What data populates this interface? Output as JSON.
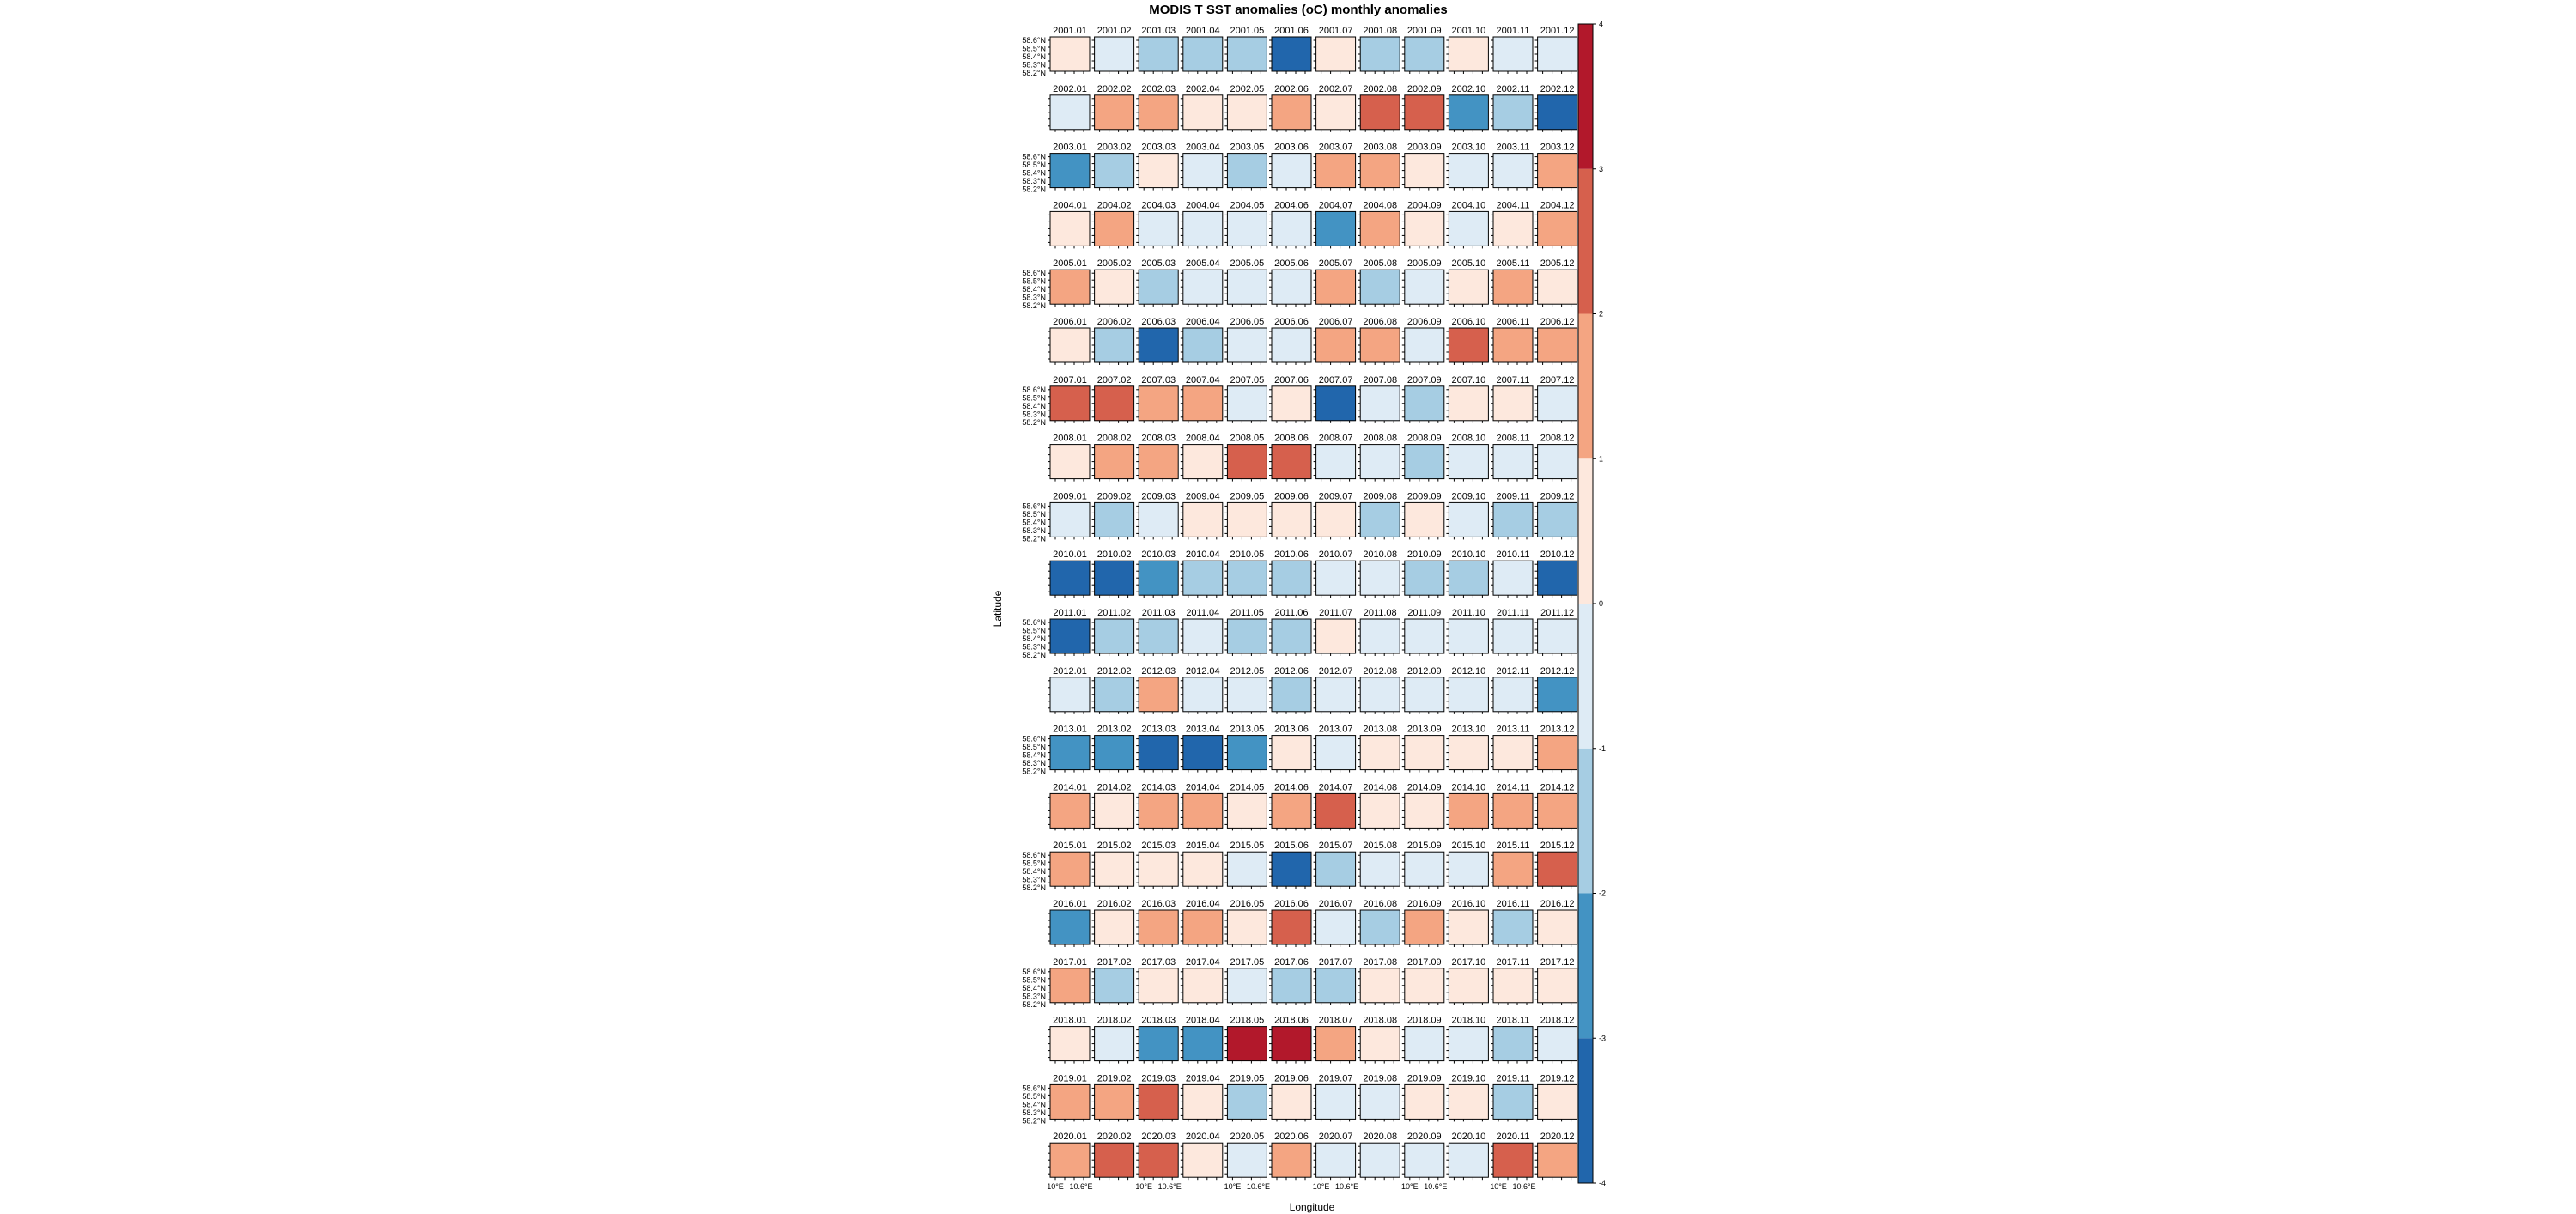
{
  "chart_data": {
    "type": "heatmap",
    "title": "MODIS T SST anomalies (oC) monthly anomalies",
    "xlabel": "Longitude",
    "ylabel": "Latitude",
    "x_tick_labels": [
      "10°E",
      "10.6°E"
    ],
    "y_tick_labels": [
      "58.6°N",
      "58.5°N",
      "58.4°N",
      "58.3°N",
      "58.2°N"
    ],
    "colorbar": {
      "ticks": [
        4,
        3,
        2,
        1,
        0,
        -1,
        -2,
        -3,
        -4
      ],
      "ylim": [
        -4,
        4
      ],
      "bins": [
        {
          "from": -4,
          "to": -3,
          "color": "#2166ac"
        },
        {
          "from": -3,
          "to": -2,
          "color": "#4393c3"
        },
        {
          "from": -2,
          "to": -1,
          "color": "#a6cde3"
        },
        {
          "from": -1,
          "to": 0,
          "color": "#deebf5"
        },
        {
          "from": 0,
          "to": 1,
          "color": "#fde8dd"
        },
        {
          "from": 1,
          "to": 2,
          "color": "#f4a582"
        },
        {
          "from": 2,
          "to": 3,
          "color": "#d6604d"
        },
        {
          "from": 3,
          "to": 4,
          "color": "#b2182b"
        }
      ]
    },
    "years": [
      "2001",
      "2002",
      "2003",
      "2004",
      "2005",
      "2006",
      "2007",
      "2008",
      "2009",
      "2010",
      "2011",
      "2012",
      "2013",
      "2014",
      "2015",
      "2016",
      "2017",
      "2018",
      "2019",
      "2020"
    ],
    "months": [
      "01",
      "02",
      "03",
      "04",
      "05",
      "06",
      "07",
      "08",
      "09",
      "10",
      "11",
      "12"
    ],
    "panel_mean_anomaly": [
      [
        0.5,
        -0.5,
        -1.5,
        -1.5,
        -1.0,
        -3.5,
        0.5,
        -1.0,
        -1.5,
        0.5,
        -0.5,
        -0.5
      ],
      [
        -0.5,
        1.5,
        1.5,
        0.5,
        0.5,
        1.5,
        0.5,
        2.5,
        2.5,
        -2.0,
        -1.5,
        -3.5
      ],
      [
        -2.5,
        -1.5,
        0.5,
        -0.5,
        -1.5,
        -0.5,
        1.5,
        1.5,
        0.5,
        -0.5,
        -0.5,
        1.5
      ],
      [
        0.5,
        1.5,
        -0.5,
        -0.5,
        -0.5,
        -0.5,
        -2.5,
        1.5,
        0.5,
        -0.5,
        0.5,
        1.5
      ],
      [
        1.5,
        0.5,
        -1.5,
        -0.5,
        -0.5,
        -0.5,
        1.5,
        -1.5,
        -0.5,
        0.5,
        1.5,
        0.5
      ],
      [
        0.5,
        -1.5,
        -3.5,
        -1.5,
        -0.5,
        -0.5,
        1.5,
        1.5,
        -0.5,
        2.5,
        1.5,
        1.5
      ],
      [
        2.5,
        2.5,
        1.5,
        1.5,
        -0.5,
        0.5,
        -3.5,
        -0.5,
        -1.5,
        0.5,
        0.5,
        -0.5
      ],
      [
        0.5,
        1.5,
        1.5,
        0.5,
        2.5,
        2.5,
        -0.5,
        -0.5,
        -1.5,
        -0.5,
        -0.5,
        -0.5
      ],
      [
        -0.5,
        -1.5,
        -0.5,
        0.5,
        0.5,
        0.5,
        0.5,
        -1.5,
        0.5,
        -0.5,
        -1.5,
        -1.5
      ],
      [
        -3.5,
        -3.5,
        -2.5,
        -1.5,
        -1.5,
        -1.5,
        -0.5,
        -0.5,
        -1.5,
        -1.5,
        -0.5,
        -3.5
      ],
      [
        -3.5,
        -1.5,
        -1.5,
        -0.5,
        -1.5,
        -1.5,
        0.5,
        -0.5,
        -0.5,
        -0.5,
        -0.5,
        -0.5
      ],
      [
        -0.5,
        -1.5,
        1.5,
        -0.5,
        -0.5,
        -1.5,
        -0.5,
        -0.5,
        -0.5,
        -0.5,
        -0.5,
        -2.5
      ],
      [
        -2.5,
        -2.5,
        -3.5,
        -3.5,
        -2.5,
        0.5,
        -0.5,
        0.5,
        0.5,
        0.5,
        0.5,
        1.5
      ],
      [
        1.5,
        0.5,
        1.5,
        1.5,
        0.5,
        1.5,
        2.5,
        0.5,
        0.5,
        1.5,
        1.5,
        1.5
      ],
      [
        1.5,
        0.5,
        0.5,
        0.5,
        -0.5,
        -3.5,
        -1.5,
        -0.5,
        -0.5,
        -0.5,
        1.5,
        2.5
      ],
      [
        -2.5,
        0.5,
        1.5,
        1.5,
        0.5,
        2.5,
        -0.5,
        -1.5,
        1.5,
        0.5,
        -1.5,
        0.5
      ],
      [
        1.5,
        -1.5,
        0.5,
        0.5,
        -0.5,
        -1.5,
        -1.5,
        0.5,
        0.5,
        0.5,
        0.5,
        0.5
      ],
      [
        0.5,
        -0.5,
        -2.5,
        -2.5,
        3.5,
        3.5,
        1.5,
        0.5,
        -0.5,
        -0.5,
        -1.5,
        -0.5
      ],
      [
        1.5,
        1.5,
        2.5,
        0.5,
        -1.5,
        0.5,
        -0.5,
        -0.5,
        0.5,
        0.5,
        -1.5,
        0.5
      ],
      [
        1.5,
        2.5,
        2.5,
        0.5,
        -0.5,
        1.5,
        -0.5,
        -0.5,
        -0.5,
        -0.5,
        2.5,
        1.5
      ]
    ]
  }
}
